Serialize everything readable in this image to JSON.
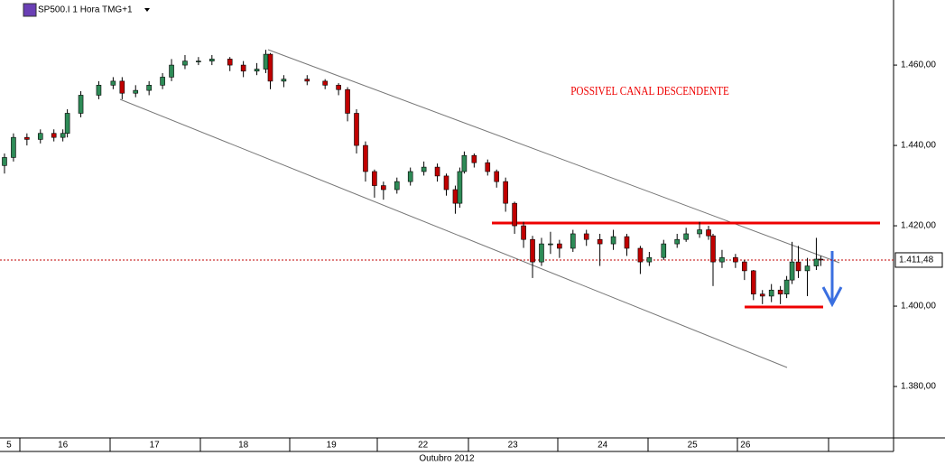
{
  "chart_data": {
    "type": "candlestick",
    "title": "SP500.I 1 Hora TMG+1",
    "annotation": "POSSIVEL CANAL DESCENDENTE",
    "xlabel": "Outubro 2012",
    "up_color": "#2e8b57",
    "down_color": "#c00000",
    "last_price": {
      "value": 1411.48,
      "label": "1.411,48"
    },
    "xlim": [
      -0.22,
      9.73
    ],
    "xticks": [
      {
        "value": -0.12,
        "label": "5"
      },
      {
        "value": 0.48,
        "label": "16"
      },
      {
        "value": 1.5,
        "label": "17"
      },
      {
        "value": 2.49,
        "label": "18"
      },
      {
        "value": 3.47,
        "label": "19"
      },
      {
        "value": 4.49,
        "label": "22"
      },
      {
        "value": 5.49,
        "label": "23"
      },
      {
        "value": 6.49,
        "label": "24"
      },
      {
        "value": 7.49,
        "label": "25"
      },
      {
        "value": 8.08,
        "label": "26"
      }
    ],
    "ylim": [
      1367.2,
      1476.2
    ],
    "yticks": [
      {
        "value": 1380,
        "label": "1.380,00"
      },
      {
        "value": 1400,
        "label": "1.400,00"
      },
      {
        "value": 1420,
        "label": "1.420,00"
      },
      {
        "value": 1440,
        "label": "1.440,00"
      },
      {
        "value": 1460,
        "label": "1.460,00"
      }
    ],
    "x": [
      -0.17,
      -0.07,
      0.08,
      0.23,
      0.38,
      0.48,
      0.53,
      0.68,
      0.88,
      1.04,
      1.14,
      1.29,
      1.44,
      1.59,
      1.69,
      1.84,
      1.99,
      2.14,
      2.34,
      2.49,
      2.64,
      2.74,
      2.79,
      2.94,
      3.2,
      3.4,
      3.55,
      3.65,
      3.75,
      3.85,
      3.95,
      4.05,
      4.2,
      4.35,
      4.5,
      4.65,
      4.75,
      4.85,
      4.9,
      4.95,
      5.06,
      5.21,
      5.31,
      5.41,
      5.51,
      5.61,
      5.71,
      5.81,
      5.91,
      6.01,
      6.16,
      6.31,
      6.46,
      6.61,
      6.76,
      6.91,
      7.01,
      7.17,
      7.32,
      7.42,
      7.57,
      7.67,
      7.72,
      7.82,
      7.97,
      8.07,
      8.17,
      8.27,
      8.37,
      8.47,
      8.54,
      8.6,
      8.67,
      8.77,
      8.87,
      8.92
    ],
    "open": [
      1435,
      1437,
      1442,
      1441.5,
      1443,
      1442,
      1443,
      1448,
      1452.5,
      1455,
      1456,
      1453,
      1453.7,
      1455,
      1457,
      1460,
      1461,
      1461,
      1461.5,
      1460,
      1458.5,
      1459,
      1462.7,
      1456,
      1456.5,
      1456,
      1455,
      1453.9,
      1448,
      1440,
      1433.5,
      1430,
      1429,
      1431,
      1433.5,
      1434.6,
      1432.4,
      1429,
      1425.6,
      1433.5,
      1437.5,
      1435.7,
      1433.5,
      1431,
      1425.6,
      1420,
      1416.6,
      1411,
      1415.5,
      1415.5,
      1414.4,
      1418,
      1416.6,
      1415.5,
      1417.3,
      1414.4,
      1411,
      1412.1,
      1415.5,
      1416.6,
      1418,
      1419,
      1417.5,
      1411,
      1412.1,
      1411,
      1408.8,
      1403,
      1402.5,
      1404,
      1403,
      1406.5,
      1411,
      1408.8,
      1410,
      1411.7
    ],
    "high": [
      1438,
      1443,
      1443,
      1444,
      1444,
      1444,
      1449,
      1453.5,
      1456,
      1457,
      1457,
      1455,
      1456,
      1458,
      1461.5,
      1462.5,
      1462,
      1462.5,
      1462,
      1461,
      1460.5,
      1463.8,
      1463,
      1457.5,
      1457.5,
      1456.5,
      1455.5,
      1454.5,
      1449,
      1441,
      1434,
      1431,
      1432,
      1434.5,
      1436,
      1435.5,
      1433,
      1430,
      1434.5,
      1438.5,
      1438,
      1436.5,
      1434,
      1432,
      1426,
      1421,
      1417.5,
      1417,
      1418.5,
      1416.5,
      1419,
      1419,
      1418,
      1419,
      1418,
      1415,
      1413.5,
      1416.5,
      1418,
      1419.5,
      1421,
      1420,
      1418,
      1414,
      1413,
      1411.5,
      1409,
      1404,
      1405.5,
      1405,
      1407.5,
      1416,
      1415,
      1412,
      1417,
      1412.5
    ],
    "low": [
      1433,
      1436,
      1440,
      1440.5,
      1441,
      1441,
      1442,
      1447,
      1451.5,
      1454,
      1451.5,
      1452,
      1452.5,
      1454,
      1456,
      1459,
      1460,
      1460,
      1458.5,
      1457,
      1457.5,
      1458,
      1454,
      1454.5,
      1455,
      1454,
      1452.5,
      1446,
      1438,
      1431,
      1427,
      1426.5,
      1428,
      1430,
      1432.5,
      1431,
      1427.5,
      1423,
      1424.5,
      1433,
      1434.5,
      1432.5,
      1429.5,
      1423.5,
      1418,
      1414.5,
      1407,
      1410,
      1413,
      1412,
      1413.5,
      1415,
      1410,
      1414,
      1412.5,
      1408,
      1410,
      1411.5,
      1414.5,
      1416,
      1417,
      1416.5,
      1405,
      1409.5,
      1409.5,
      1406.5,
      1401.5,
      1400.5,
      1401,
      1400.5,
      1402,
      1405.5,
      1407,
      1402.5,
      1409,
      1410
    ],
    "close": [
      1437,
      1442,
      1441.5,
      1443,
      1442,
      1443,
      1448,
      1452.5,
      1455,
      1456,
      1453,
      1453.7,
      1455,
      1457,
      1460,
      1461,
      1461,
      1461.5,
      1460,
      1458.5,
      1459,
      1462.7,
      1456,
      1456.5,
      1456,
      1455,
      1453.9,
      1448,
      1440,
      1433.5,
      1430,
      1429,
      1431,
      1433.5,
      1434.6,
      1432.4,
      1429,
      1425.6,
      1433.5,
      1437.5,
      1435.7,
      1433.5,
      1431,
      1425.6,
      1420,
      1416.6,
      1411,
      1415.5,
      1415.5,
      1414.4,
      1418,
      1416.6,
      1415.5,
      1417.3,
      1414.4,
      1411,
      1412.1,
      1415.5,
      1416.6,
      1418,
      1419,
      1417.5,
      1411,
      1412.1,
      1411,
      1408.8,
      1403,
      1402.5,
      1404,
      1403,
      1406.5,
      1411,
      1408.8,
      1410,
      1411.7,
      1411.5
    ]
  }
}
